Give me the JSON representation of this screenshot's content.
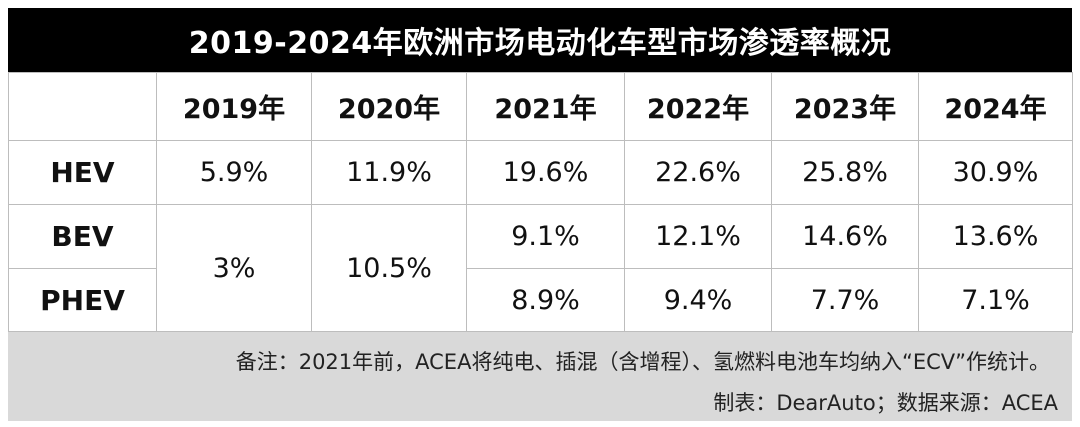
{
  "chart_data": {
    "type": "table",
    "title": "2019-2024年欧洲市场电动化车型市场渗透率概况",
    "columns": [
      "",
      "2019年",
      "2020年",
      "2021年",
      "2022年",
      "2023年",
      "2024年"
    ],
    "rows": [
      {
        "label": "HEV",
        "values": [
          "5.9%",
          "11.9%",
          "19.6%",
          "22.6%",
          "25.8%",
          "30.9%"
        ]
      },
      {
        "label": "BEV",
        "values": [
          "3%",
          "10.5%",
          "9.1%",
          "12.1%",
          "14.6%",
          "13.6%"
        ]
      },
      {
        "label": "PHEV",
        "values": [
          "3%",
          "10.5%",
          "8.9%",
          "9.4%",
          "7.7%",
          "7.1%"
        ]
      }
    ],
    "merged_cells_note": "2019年 and 2020年 BEV/PHEV values are a single merged cell"
  },
  "footer": {
    "note": "备注：2021年前，ACEA将纯电、插混（含增程）、氢燃料电池车均纳入“ECV”作统计。",
    "source": "制表：DearAuto；数据来源：ACEA"
  }
}
